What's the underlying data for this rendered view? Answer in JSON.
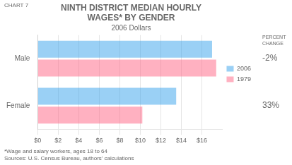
{
  "chart_data": {
    "type": "bar",
    "orientation": "horizontal",
    "title": [
      "NINTH DISTRICT MEDIAN HOURLY",
      "WAGES* BY GENDER"
    ],
    "subtitle": "2006 Dollars",
    "chart_label": "CHART 7",
    "categories": [
      "Male",
      "Female"
    ],
    "series": [
      {
        "name": "2006",
        "values": [
          17.0,
          13.5
        ]
      },
      {
        "name": "1979",
        "values": [
          17.4,
          10.2
        ]
      }
    ],
    "xlim": [
      0,
      18
    ],
    "xticks": [
      {
        "value": 0,
        "label": "$0"
      },
      {
        "value": 2,
        "label": "$2"
      },
      {
        "value": 4,
        "label": "$4"
      },
      {
        "value": 6,
        "label": "$6"
      },
      {
        "value": 8,
        "label": "$8"
      },
      {
        "value": 10,
        "label": "$10"
      },
      {
        "value": 12,
        "label": "$12"
      },
      {
        "value": 14,
        "label": "$14"
      },
      {
        "value": 16,
        "label": "$16"
      }
    ],
    "grid": true,
    "legend": "right",
    "annotations": [
      {
        "text": "PERCENT\nCHANGE"
      },
      {
        "text": "-2%",
        "category": "Male"
      },
      {
        "text": "33%",
        "category": "Female"
      }
    ],
    "footnotes": [
      "*Wage and salary workers, ages 18 to 64",
      "Sources: U.S. Census Bureau, authors' calculations"
    ]
  }
}
